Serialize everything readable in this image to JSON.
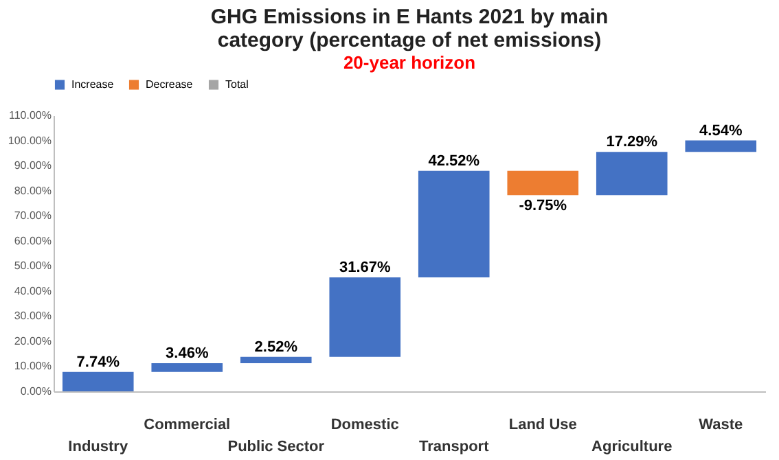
{
  "chart_data": {
    "type": "bar",
    "title": "GHG Emissions in E Hants 2021 by main category (percentage of net emissions)",
    "subtitle": "20-year horizon",
    "categories": [
      "Industry",
      "Commercial",
      "Public Sector",
      "Domestic",
      "Transport",
      "Land Use",
      "Agriculture",
      "Waste"
    ],
    "series": [
      {
        "name": "Increase",
        "color": "#4472c4",
        "base": [
          0,
          7.74,
          11.2,
          13.72,
          45.39,
          null,
          78.16,
          95.45
        ],
        "values": [
          7.74,
          3.46,
          2.52,
          31.67,
          42.52,
          null,
          17.29,
          4.54
        ],
        "value_labels": [
          "7.74%",
          "3.46%",
          "2.52%",
          "31.67%",
          "42.52%",
          null,
          "17.29%",
          "4.54%"
        ]
      },
      {
        "name": "Decrease",
        "color": "#ed7d31",
        "base": [
          null,
          null,
          null,
          null,
          null,
          87.91,
          null,
          null
        ],
        "values": [
          null,
          null,
          null,
          null,
          null,
          -9.75,
          null,
          null
        ],
        "value_labels": [
          null,
          null,
          null,
          null,
          null,
          "-9.75%",
          null,
          null
        ]
      },
      {
        "name": "Total",
        "color": "#a5a5a5",
        "values": [
          null,
          null,
          null,
          null,
          null,
          null,
          null,
          null
        ]
      }
    ],
    "ylim": [
      0,
      110
    ],
    "yticks": [
      {
        "value": 0,
        "label": "0.00%"
      },
      {
        "value": 10,
        "label": "10.00%"
      },
      {
        "value": 20,
        "label": "20.00%"
      },
      {
        "value": 30,
        "label": "30.00%"
      },
      {
        "value": 40,
        "label": "40.00%"
      },
      {
        "value": 50,
        "label": "50.00%"
      },
      {
        "value": 60,
        "label": "60.00%"
      },
      {
        "value": 70,
        "label": "70.00%"
      },
      {
        "value": 80,
        "label": "80.00%"
      },
      {
        "value": 90,
        "label": "90.00%"
      },
      {
        "value": 100,
        "label": "100.00%"
      },
      {
        "value": 110,
        "label": "110.00%"
      }
    ],
    "grid": false,
    "legend": "top"
  }
}
